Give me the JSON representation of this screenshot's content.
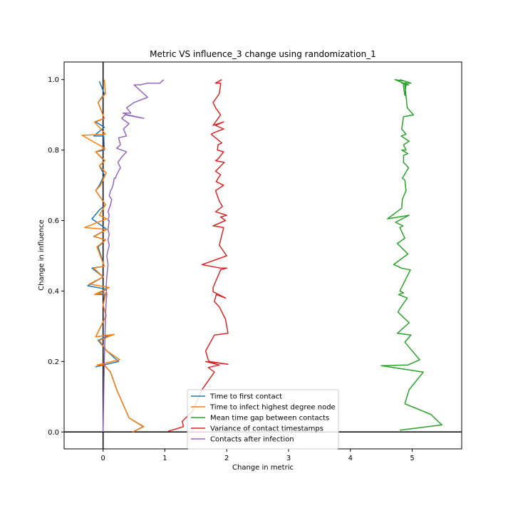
{
  "chart_data": {
    "type": "line",
    "title": "Metric VS influence_3 change using randomization_1",
    "xlabel": "Change in metric",
    "ylabel": "Change in influence",
    "xlim": [
      -0.63,
      5.8
    ],
    "ylim": [
      -0.048,
      1.05
    ],
    "xticks": [
      0,
      1,
      2,
      3,
      4,
      5
    ],
    "yticks": [
      0.0,
      0.2,
      0.4,
      0.6,
      0.8,
      1.0
    ],
    "xtick_labels": [
      "0",
      "1",
      "2",
      "3",
      "4",
      "5"
    ],
    "ytick_labels": [
      "0.0",
      "0.2",
      "0.4",
      "0.6",
      "0.8",
      "1.0"
    ],
    "grid": false,
    "reference_lines": {
      "x": 0,
      "y": 0
    },
    "legend_position": "lower-center",
    "series": [
      {
        "name": "Time to first contact",
        "color": "#1f77b4",
        "x": [
          0.48,
          0.65,
          0.42,
          0.22,
          0.12,
          0.02,
          -0.12,
          0.25,
          0.06,
          -0.08,
          0.1,
          -0.12,
          0.05,
          0.0,
          0.03,
          -0.12,
          0.06,
          -0.25,
          0.0,
          -0.18,
          0.02,
          -0.08,
          0.04,
          -0.15,
          0.06,
          -0.18,
          -0.06,
          0.04,
          -0.12,
          -0.06,
          0.02,
          -0.06,
          0.02,
          -0.12,
          0.02,
          0.01,
          -0.15,
          0.02,
          -0.12,
          0.02,
          -0.08,
          0.02,
          -0.06
        ],
        "y": [
          0.0,
          0.015,
          0.04,
          0.12,
          0.17,
          0.19,
          0.185,
          0.2,
          0.23,
          0.26,
          0.275,
          0.27,
          0.33,
          0.36,
          0.39,
          0.39,
          0.405,
          0.415,
          0.44,
          0.465,
          0.47,
          0.525,
          0.545,
          0.555,
          0.575,
          0.605,
          0.63,
          0.645,
          0.685,
          0.7,
          0.73,
          0.755,
          0.77,
          0.795,
          0.8,
          0.84,
          0.84,
          0.865,
          0.88,
          0.89,
          0.935,
          0.96,
          0.995
        ]
      },
      {
        "name": "Time to infect highest degree node",
        "color": "#ff7f0e",
        "x": [
          0.48,
          0.66,
          0.42,
          0.22,
          0.12,
          0.02,
          -0.1,
          0.27,
          0.06,
          -0.06,
          0.18,
          -0.12,
          0.05,
          0.0,
          0.05,
          -0.14,
          0.1,
          -0.22,
          0.0,
          -0.15,
          0.02,
          -0.1,
          0.04,
          -0.14,
          0.06,
          -0.3,
          0.06,
          -0.06,
          0.04,
          -0.12,
          -0.04,
          0.05,
          -0.06,
          0.03,
          -0.12,
          0.03,
          -0.34,
          0.04,
          -0.14,
          0.02,
          -0.08,
          0.04,
          0.02
        ],
        "y": [
          0.0,
          0.015,
          0.04,
          0.12,
          0.17,
          0.19,
          0.19,
          0.205,
          0.23,
          0.26,
          0.277,
          0.27,
          0.33,
          0.36,
          0.395,
          0.39,
          0.41,
          0.42,
          0.44,
          0.465,
          0.47,
          0.525,
          0.545,
          0.555,
          0.575,
          0.58,
          0.605,
          0.615,
          0.645,
          0.685,
          0.7,
          0.735,
          0.755,
          0.77,
          0.795,
          0.805,
          0.842,
          0.845,
          0.88,
          0.89,
          0.935,
          0.96,
          1.0
        ]
      },
      {
        "name": "Mean time gap between contacts",
        "color": "#2ca02c",
        "x": [
          4.8,
          5.48,
          5.3,
          4.88,
          4.95,
          5.18,
          4.5,
          4.93,
          5.12,
          4.88,
          4.98,
          4.76,
          4.95,
          4.77,
          4.8,
          4.92,
          4.78,
          4.86,
          4.8,
          4.97,
          4.82,
          4.77,
          4.7,
          4.93,
          4.76,
          4.88,
          4.8,
          4.85,
          4.73,
          4.95,
          4.6,
          4.83,
          4.84,
          4.9,
          4.88,
          4.84,
          4.94,
          4.86,
          4.86,
          4.93,
          4.83,
          4.9,
          4.86,
          4.95,
          4.82,
          4.9,
          4.83,
          4.86,
          5.02,
          4.92,
          4.88,
          4.9,
          4.72,
          4.86,
          4.86,
          4.88,
          4.9,
          4.92,
          4.94,
          4.83,
          4.98,
          4.8
        ],
        "y": [
          0.005,
          0.02,
          0.05,
          0.08,
          0.12,
          0.17,
          0.188,
          0.19,
          0.205,
          0.255,
          0.275,
          0.28,
          0.31,
          0.34,
          0.35,
          0.38,
          0.39,
          0.395,
          0.4,
          0.46,
          0.465,
          0.47,
          0.475,
          0.505,
          0.535,
          0.55,
          0.58,
          0.585,
          0.595,
          0.615,
          0.605,
          0.635,
          0.66,
          0.685,
          0.715,
          0.72,
          0.75,
          0.765,
          0.785,
          0.79,
          0.8,
          0.8,
          0.815,
          0.825,
          0.84,
          0.845,
          0.86,
          0.895,
          0.9,
          0.92,
          0.985,
          0.995,
          1.0,
          0.99,
          0.98,
          0.955,
          0.985,
          0.985,
          0.985,
          0.99,
          0.99,
          1.0
        ]
      },
      {
        "name": "Variance of contact timestamps",
        "color": "#d62728",
        "x": [
          1.05,
          1.3,
          1.28,
          1.45,
          1.6,
          1.8,
          1.7,
          1.88,
          1.66,
          2.02,
          1.72,
          1.7,
          1.66,
          1.8,
          2.02,
          1.98,
          1.88,
          1.8,
          1.83,
          1.98,
          1.78,
          1.78,
          1.9,
          2.0,
          1.9,
          1.6,
          2.0,
          1.88,
          1.95,
          1.85,
          1.78,
          1.98,
          1.9,
          2.0,
          1.82,
          1.93,
          1.88,
          1.82,
          1.95,
          1.83,
          1.86,
          1.9,
          1.82,
          1.96,
          1.82,
          1.86,
          1.95,
          1.85,
          1.86,
          1.92,
          1.75,
          1.8,
          1.95,
          1.82,
          1.95,
          1.78,
          1.9,
          1.82,
          1.78,
          1.88,
          1.9,
          1.9,
          1.82,
          1.92
        ],
        "y": [
          0.002,
          0.015,
          0.03,
          0.06,
          0.12,
          0.17,
          0.183,
          0.19,
          0.2,
          0.192,
          0.2,
          0.205,
          0.23,
          0.275,
          0.28,
          0.32,
          0.355,
          0.37,
          0.39,
          0.38,
          0.398,
          0.41,
          0.46,
          0.465,
          0.465,
          0.475,
          0.5,
          0.53,
          0.58,
          0.583,
          0.585,
          0.6,
          0.61,
          0.615,
          0.625,
          0.64,
          0.655,
          0.685,
          0.7,
          0.71,
          0.72,
          0.73,
          0.74,
          0.765,
          0.77,
          0.775,
          0.795,
          0.8,
          0.815,
          0.82,
          0.845,
          0.85,
          0.86,
          0.87,
          0.88,
          0.87,
          0.9,
          0.92,
          0.935,
          0.96,
          0.985,
          0.99,
          0.99,
          1.0
        ]
      },
      {
        "name": "Contacts after infection",
        "color": "#9467bd",
        "x": [
          0.0,
          0.01,
          0.02,
          0.03,
          0.04,
          0.05,
          0.06,
          0.05,
          0.06,
          0.08,
          0.06,
          0.1,
          0.08,
          0.1,
          0.08,
          0.1,
          0.08,
          0.1,
          0.08,
          0.12,
          0.14,
          0.1,
          0.12,
          0.14,
          0.16,
          0.18,
          0.2,
          0.22,
          0.28,
          0.24,
          0.3,
          0.38,
          0.22,
          0.28,
          0.25,
          0.38,
          0.33,
          0.42,
          0.3,
          0.36,
          0.66,
          0.4,
          0.32,
          0.45,
          0.38,
          0.5,
          0.72,
          0.5,
          0.6,
          0.72,
          0.92,
          0.98
        ],
        "y": [
          0.0,
          0.1,
          0.2,
          0.27,
          0.33,
          0.37,
          0.39,
          0.41,
          0.44,
          0.475,
          0.5,
          0.53,
          0.545,
          0.56,
          0.575,
          0.6,
          0.6,
          0.615,
          0.625,
          0.645,
          0.66,
          0.67,
          0.685,
          0.69,
          0.7,
          0.72,
          0.72,
          0.73,
          0.75,
          0.765,
          0.78,
          0.795,
          0.805,
          0.815,
          0.835,
          0.84,
          0.86,
          0.875,
          0.89,
          0.9,
          0.89,
          0.9,
          0.905,
          0.905,
          0.92,
          0.935,
          0.95,
          0.985,
          0.985,
          0.99,
          0.99,
          1.0
        ]
      }
    ]
  }
}
